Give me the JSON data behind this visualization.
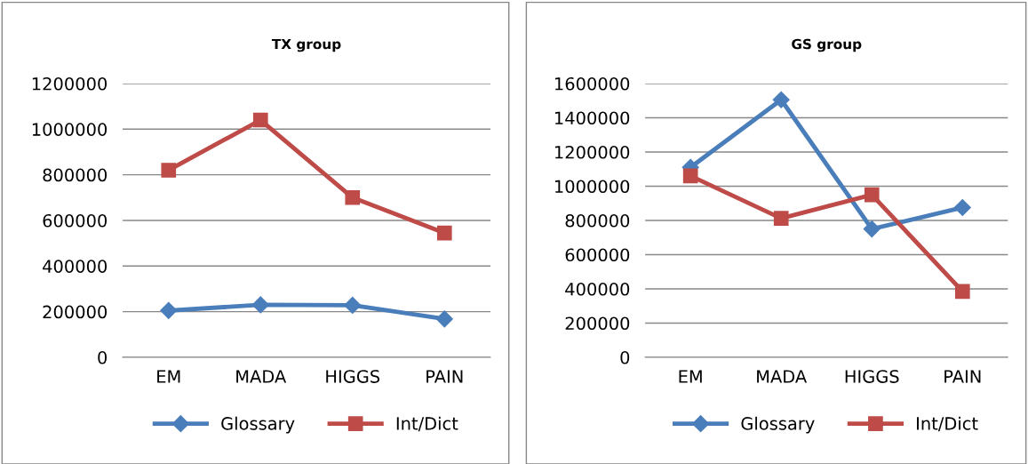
{
  "chart_data": [
    {
      "type": "line",
      "title": "TX group",
      "categories": [
        "EM",
        "MADA",
        "HIGGS",
        "PAIN"
      ],
      "ylim": [
        0,
        1200000
      ],
      "yticks": [
        0,
        200000,
        400000,
        600000,
        800000,
        1000000,
        1200000
      ],
      "grid": "y",
      "legend": "bottom",
      "series": [
        {
          "name": "Glossary",
          "color": "#4a7ebb",
          "marker": "diamond",
          "values": [
            205000,
            230000,
            228000,
            168000
          ]
        },
        {
          "name": "Int/Dict",
          "color": "#be4b48",
          "marker": "square",
          "values": [
            820000,
            1040000,
            700000,
            545000
          ]
        }
      ]
    },
    {
      "type": "line",
      "title": "GS group",
      "categories": [
        "EM",
        "MADA",
        "HIGGS",
        "PAIN"
      ],
      "ylim": [
        0,
        1600000
      ],
      "yticks": [
        0,
        200000,
        400000,
        600000,
        800000,
        1000000,
        1200000,
        1400000,
        1600000
      ],
      "grid": "y",
      "legend": "bottom",
      "series": [
        {
          "name": "Glossary",
          "color": "#4a7ebb",
          "marker": "diamond",
          "values": [
            1110000,
            1505000,
            750000,
            875000
          ]
        },
        {
          "name": "Int/Dict",
          "color": "#be4b48",
          "marker": "square",
          "values": [
            1060000,
            812000,
            950000,
            385000
          ]
        }
      ]
    }
  ]
}
